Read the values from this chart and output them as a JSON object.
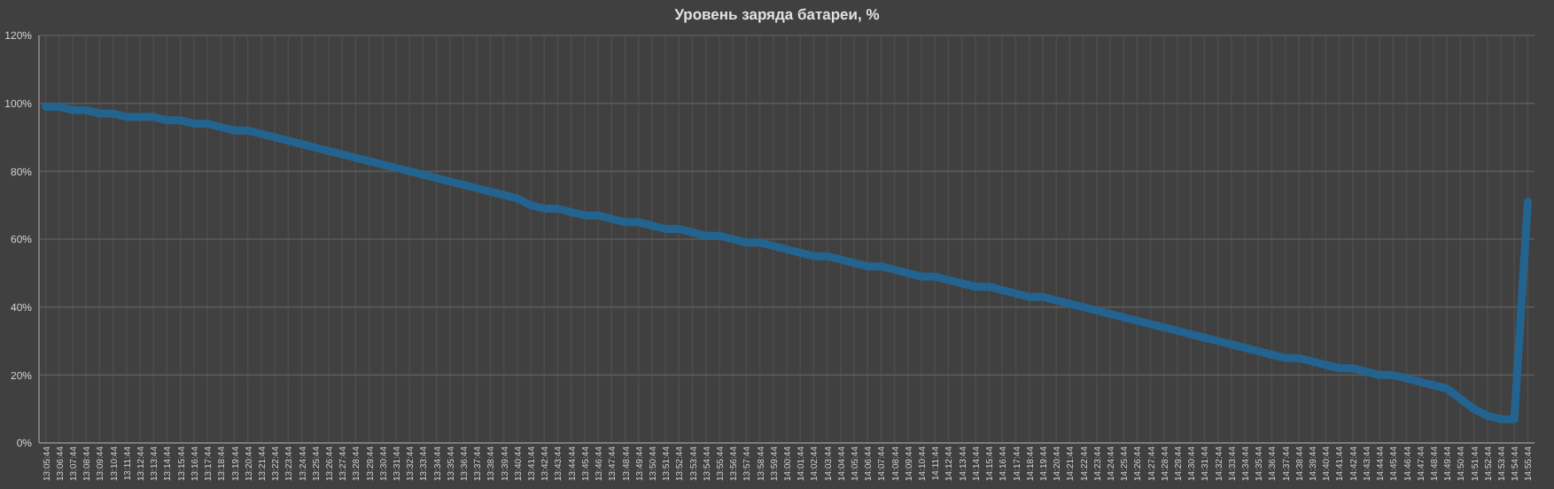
{
  "chart_data": {
    "type": "line",
    "title": "Уровень заряда батареи, %",
    "categories": [
      "13:05:44",
      "13:06:44",
      "13:07:44",
      "13:08:44",
      "13:09:44",
      "13:10:44",
      "13:11:44",
      "13:12:44",
      "13:13:44",
      "13:14:44",
      "13:15:44",
      "13:16:44",
      "13:17:44",
      "13:18:44",
      "13:19:44",
      "13:20:44",
      "13:21:44",
      "13:22:44",
      "13:23:44",
      "13:24:44",
      "13:25:44",
      "13:26:44",
      "13:27:44",
      "13:28:44",
      "13:29:44",
      "13:30:44",
      "13:31:44",
      "13:32:44",
      "13:33:44",
      "13:34:44",
      "13:35:44",
      "13:36:44",
      "13:37:44",
      "13:38:44",
      "13:39:44",
      "13:40:44",
      "13:41:44",
      "13:42:44",
      "13:43:44",
      "13:44:44",
      "13:45:44",
      "13:46:44",
      "13:47:44",
      "13:48:44",
      "13:49:44",
      "13:50:44",
      "13:51:44",
      "13:52:44",
      "13:53:44",
      "13:54:44",
      "13:55:44",
      "13:56:44",
      "13:57:44",
      "13:58:44",
      "13:59:44",
      "14:00:44",
      "14:01:44",
      "14:02:44",
      "14:03:44",
      "14:04:44",
      "14:05:44",
      "14:06:44",
      "14:07:44",
      "14:08:44",
      "14:09:44",
      "14:10:44",
      "14:11:44",
      "14:12:44",
      "14:13:44",
      "14:14:44",
      "14:15:44",
      "14:16:44",
      "14:17:44",
      "14:18:44",
      "14:19:44",
      "14:20:44",
      "14:21:44",
      "14:22:44",
      "14:23:44",
      "14:24:44",
      "14:25:44",
      "14:26:44",
      "14:27:44",
      "14:28:44",
      "14:29:44",
      "14:30:44",
      "14:31:44",
      "14:32:44",
      "14:33:44",
      "14:34:44",
      "14:35:44",
      "14:36:44",
      "14:37:44",
      "14:38:44",
      "14:39:44",
      "14:40:44",
      "14:41:44",
      "14:42:44",
      "14:43:44",
      "14:44:44",
      "14:45:44",
      "14:46:44",
      "14:47:44",
      "14:48:44",
      "14:49:44",
      "14:50:44",
      "14:51:44",
      "14:52:44",
      "14:53:44",
      "14:54:44",
      "14:55:44"
    ],
    "series": [
      {
        "color": "#22648f",
        "values": [
          99,
          99,
          98,
          98,
          97,
          97,
          96,
          96,
          96,
          95,
          95,
          94,
          94,
          93,
          92,
          92,
          91,
          90,
          89,
          88,
          87,
          86,
          85,
          84,
          83,
          82,
          81,
          80,
          79,
          78,
          77,
          76,
          75,
          74,
          73,
          72,
          70,
          69,
          69,
          68,
          67,
          67,
          66,
          65,
          65,
          64,
          63,
          63,
          62,
          61,
          61,
          60,
          59,
          59,
          58,
          57,
          56,
          55,
          55,
          54,
          53,
          52,
          52,
          51,
          50,
          49,
          49,
          48,
          47,
          46,
          46,
          45,
          44,
          43,
          43,
          42,
          41,
          40,
          39,
          38,
          37,
          36,
          35,
          34,
          33,
          32,
          31,
          30,
          29,
          28,
          27,
          26,
          25,
          25,
          24,
          23,
          22,
          22,
          21,
          20,
          20,
          19,
          18,
          17,
          16,
          13,
          10,
          8,
          7,
          7,
          71
        ]
      }
    ],
    "ylim": [
      0,
      120
    ],
    "yticks": [
      {
        "value": 0,
        "label": "0%"
      },
      {
        "value": 20,
        "label": "20%"
      },
      {
        "value": 40,
        "label": "40%"
      },
      {
        "value": 60,
        "label": "60%"
      },
      {
        "value": 80,
        "label": "80%"
      },
      {
        "value": 100,
        "label": "100%"
      },
      {
        "value": 120,
        "label": "120%"
      }
    ],
    "grid": true,
    "marker": "none",
    "line_style": "solid"
  }
}
